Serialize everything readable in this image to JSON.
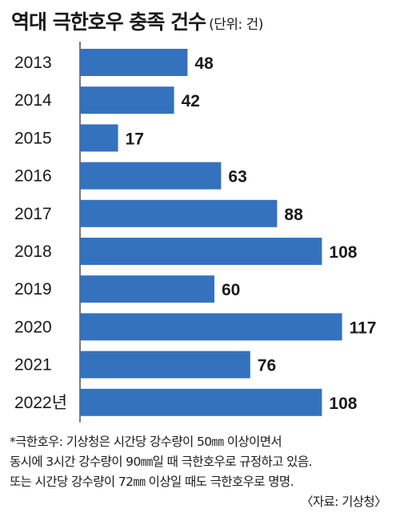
{
  "header": {
    "title": "역대 극한호우 충족 건수",
    "unit": "(단위: 건)"
  },
  "colors": {
    "bar": "#3472be",
    "axis": "#333333"
  },
  "chart_data": {
    "type": "bar",
    "orientation": "horizontal",
    "title": "역대 극한호우 충족 건수",
    "unit": "(단위: 건)",
    "categories": [
      "2013",
      "2014",
      "2015",
      "2016",
      "2017",
      "2018",
      "2019",
      "2020",
      "2021",
      "2022년"
    ],
    "values": [
      48,
      42,
      17,
      63,
      88,
      108,
      60,
      117,
      76,
      108
    ],
    "data_labels": [
      "48",
      "42",
      "17",
      "63",
      "88",
      "108",
      "60",
      "117",
      "76",
      "108"
    ],
    "xlim": [
      0,
      117
    ],
    "grid": false
  },
  "footnote": {
    "lines": [
      "*극한호우: 기상청은 시간당 강수량이 50㎜ 이상이면서",
      "동시에 3시간 강수량이 90㎜일 때 극한호우로 규정하고 있음.",
      "또는 시간당 강수량이 72㎜ 이상일 때도 극한호우로 명명."
    ],
    "source": "〈자료: 기상청〉"
  }
}
